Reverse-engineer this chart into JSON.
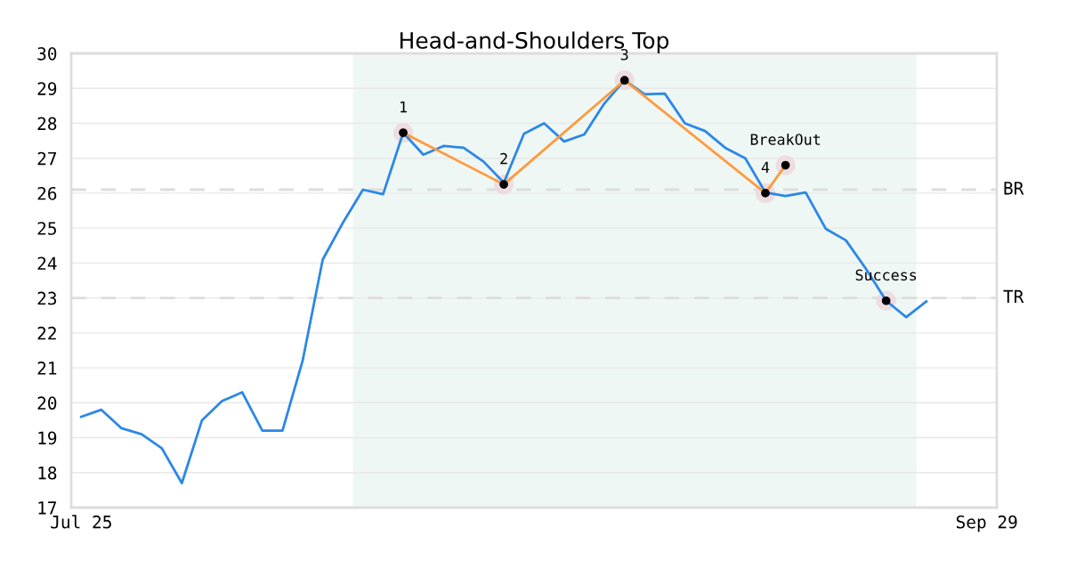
{
  "chart_data": {
    "type": "line",
    "title": "Head-and-Shoulders Top",
    "categories": [
      "Jul 25",
      null,
      null,
      null,
      null,
      null,
      null,
      null,
      null,
      null,
      null,
      null,
      null,
      null,
      null,
      null,
      null,
      null,
      null,
      null,
      null,
      null,
      null,
      null,
      null,
      null,
      null,
      null,
      null,
      null,
      null,
      null,
      null,
      null,
      null,
      null,
      null,
      null,
      null,
      null,
      null,
      null,
      null,
      null,
      null,
      "Sep 29"
    ],
    "ylim": [
      17,
      30
    ],
    "yticks": [
      17,
      18,
      19,
      20,
      21,
      22,
      23,
      24,
      25,
      26,
      27,
      28,
      29,
      30
    ],
    "grid": "y",
    "line_style": "solid",
    "series": [
      {
        "color": "#2b87e8",
        "marker": "none",
        "values": [
          19.6,
          19.8,
          19.27,
          19.1,
          18.7,
          17.7,
          19.5,
          20.05,
          20.3,
          19.2,
          19.2,
          21.2,
          24.1,
          25.15,
          26.1,
          25.97,
          27.73,
          27.1,
          27.35,
          27.3,
          26.9,
          26.3,
          27.7,
          28.0,
          27.48,
          27.68,
          28.57,
          29.23,
          28.83,
          28.85,
          28.0,
          27.78,
          27.3,
          27.0,
          26.02,
          25.92,
          26.02,
          24.98,
          24.65,
          23.83,
          22.92,
          22.45,
          22.9,
          null,
          null,
          null
        ]
      },
      {
        "color": "#ff9a3c",
        "marker": "circle",
        "values": [
          null,
          null,
          null,
          null,
          null,
          null,
          null,
          null,
          null,
          null,
          null,
          null,
          null,
          null,
          null,
          null,
          27.73,
          null,
          null,
          null,
          null,
          26.25,
          null,
          null,
          null,
          null,
          null,
          29.23,
          null,
          null,
          null,
          null,
          null,
          null,
          26.0,
          26.8,
          null,
          null,
          null,
          null,
          null,
          null,
          null,
          null,
          null,
          null
        ]
      },
      {
        "type": "scatter",
        "color": "#000000",
        "marker": "circle",
        "values": [
          null,
          null,
          null,
          null,
          null,
          null,
          null,
          null,
          null,
          null,
          null,
          null,
          null,
          null,
          null,
          null,
          null,
          null,
          null,
          null,
          null,
          null,
          null,
          null,
          null,
          null,
          null,
          null,
          null,
          null,
          null,
          null,
          null,
          null,
          null,
          null,
          null,
          null,
          null,
          null,
          22.92,
          null,
          null,
          null,
          null,
          null
        ]
      }
    ],
    "ref_lines": [
      {
        "axis": "y",
        "value": 26.1,
        "label": "BR",
        "color": "#dddddd",
        "line_style": "dashed"
      },
      {
        "axis": "y",
        "value": 23.0,
        "label": "TR",
        "color": "#dddddd",
        "line_style": "dashed"
      }
    ],
    "annotations": [
      {
        "text": "1",
        "y": 27.73
      },
      {
        "text": "2",
        "y": 26.25
      },
      {
        "text": "3",
        "y": 29.23
      },
      {
        "text": "4",
        "y": 26.0
      },
      {
        "text": "BreakOut",
        "y": 26.8
      },
      {
        "text": "Success",
        "y": 22.92
      }
    ]
  }
}
